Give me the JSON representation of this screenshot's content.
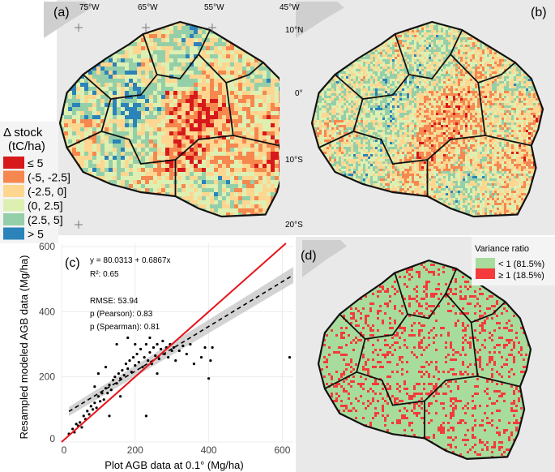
{
  "panels": {
    "a": {
      "label": "(a)"
    },
    "b": {
      "label": "(b)"
    },
    "c": {
      "label": "(c)"
    },
    "d": {
      "label": "(d)"
    }
  },
  "map_a": {
    "lon_labels": [
      "75°W",
      "65°W",
      "55°W",
      "45°W"
    ],
    "lat_labels": [
      "10°N",
      "0°",
      "10°S",
      "20°S"
    ],
    "legend": {
      "title_line1": "Δ stock",
      "title_line2": "(tC/ha)",
      "items": [
        {
          "label": "≤ 5",
          "color": "#d7191c"
        },
        {
          "label": "(-5, -2.5]",
          "color": "#f5874f"
        },
        {
          "label": "(-2.5, 0]",
          "color": "#fed690"
        },
        {
          "label": "(0, 2.5]",
          "color": "#ddf0b2"
        },
        {
          "label": "(2.5, 5]",
          "color": "#94cfa9"
        },
        {
          "label": "> 5",
          "color": "#2b83ba"
        }
      ]
    }
  },
  "map_d": {
    "legend": {
      "title": "Variance ratio",
      "items": [
        {
          "label": "< 1 (81.5%)",
          "color": "#a8dc9c",
          "fraction": 0.815
        },
        {
          "label": "≥ 1 (18.5%)",
          "color": "#f43a3a",
          "fraction": 0.185
        }
      ]
    }
  },
  "chart_data": {
    "type": "scatter",
    "xlabel": "Plot AGB data at 0.1° (Mg/ha)",
    "ylabel": "Resampled modeled AGB data (Mg/ha)",
    "xlim": [
      0,
      630
    ],
    "ylim": [
      0,
      610
    ],
    "xticks": [
      0,
      200,
      400,
      600
    ],
    "yticks": [
      0,
      200,
      400,
      600
    ],
    "grid": true,
    "annotations": [
      "y = 80.0313 + 0.6867x",
      "R²: 0.65",
      "RMSE: 53.94",
      "p (Pearson): 0.83",
      "p (Spearman): 0.81"
    ],
    "fit_line": {
      "intercept": 80.0313,
      "slope": 0.6867,
      "style": "dashed",
      "color": "#000000"
    },
    "identity_line": {
      "intercept": 0,
      "slope": 1,
      "color": "#e8141b"
    },
    "points": [
      [
        20,
        25
      ],
      [
        30,
        40
      ],
      [
        35,
        30
      ],
      [
        40,
        55
      ],
      [
        45,
        50
      ],
      [
        50,
        60
      ],
      [
        55,
        45
      ],
      [
        60,
        80
      ],
      [
        65,
        70
      ],
      [
        70,
        95
      ],
      [
        75,
        85
      ],
      [
        80,
        110
      ],
      [
        85,
        100
      ],
      [
        90,
        120
      ],
      [
        95,
        105
      ],
      [
        100,
        140
      ],
      [
        105,
        125
      ],
      [
        110,
        150
      ],
      [
        115,
        130
      ],
      [
        120,
        165
      ],
      [
        125,
        150
      ],
      [
        130,
        175
      ],
      [
        135,
        160
      ],
      [
        140,
        190
      ],
      [
        145,
        200
      ],
      [
        150,
        180
      ],
      [
        155,
        210
      ],
      [
        160,
        195
      ],
      [
        165,
        220
      ],
      [
        170,
        205
      ],
      [
        175,
        240
      ],
      [
        180,
        225
      ],
      [
        185,
        250
      ],
      [
        190,
        215
      ],
      [
        195,
        260
      ],
      [
        200,
        235
      ],
      [
        205,
        270
      ],
      [
        210,
        245
      ],
      [
        215,
        285
      ],
      [
        220,
        230
      ],
      [
        225,
        260
      ],
      [
        230,
        300
      ],
      [
        235,
        250
      ],
      [
        240,
        275
      ],
      [
        245,
        240
      ],
      [
        250,
        290
      ],
      [
        255,
        265
      ],
      [
        260,
        300
      ],
      [
        265,
        255
      ],
      [
        270,
        285
      ],
      [
        275,
        310
      ],
      [
        280,
        270
      ],
      [
        285,
        290
      ],
      [
        290,
        260
      ],
      [
        295,
        300
      ],
      [
        300,
        280
      ],
      [
        305,
        290
      ],
      [
        310,
        250
      ],
      [
        320,
        280
      ],
      [
        330,
        295
      ],
      [
        340,
        270
      ],
      [
        350,
        300
      ],
      [
        360,
        240
      ],
      [
        380,
        260
      ],
      [
        390,
        290
      ],
      [
        400,
        195
      ],
      [
        405,
        250
      ],
      [
        410,
        290
      ],
      [
        130,
        80
      ],
      [
        230,
        80
      ],
      [
        180,
        320
      ],
      [
        150,
        300
      ],
      [
        120,
        230
      ],
      [
        100,
        210
      ],
      [
        160,
        140
      ],
      [
        200,
        300
      ],
      [
        240,
        320
      ],
      [
        260,
        210
      ],
      [
        620,
        260
      ],
      [
        90,
        170
      ]
    ]
  }
}
